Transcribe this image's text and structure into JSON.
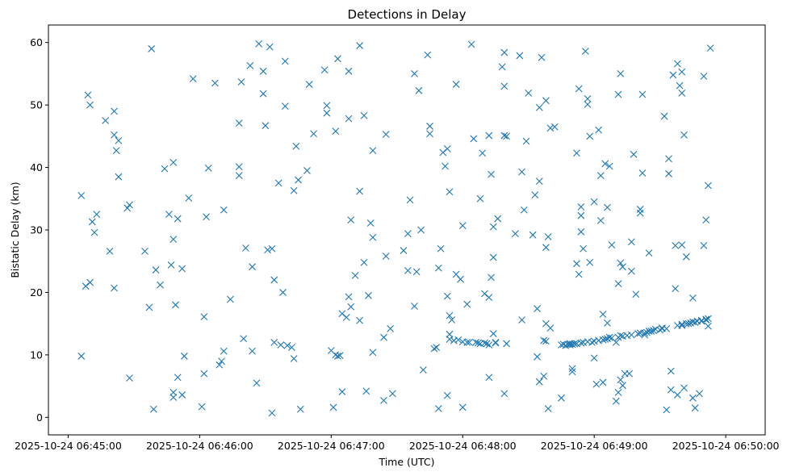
{
  "chart_data": {
    "type": "scatter",
    "title": "Detections in Delay",
    "xlabel": "Time (UTC)",
    "ylabel": "Bistatic Delay (km)",
    "x_unit": "time (HH:MM:SS on 2025-10-24, UTC)",
    "xlim": [
      "06:44:51",
      "06:50:18"
    ],
    "ylim": [
      -2.8,
      62.8
    ],
    "x_ticks": [
      "2025-10-24 06:45:00",
      "2025-10-24 06:46:00",
      "2025-10-24 06:47:00",
      "2025-10-24 06:48:00",
      "2025-10-24 06:49:00",
      "2025-10-24 06:50:00"
    ],
    "y_ticks": [
      0,
      10,
      20,
      30,
      40,
      50,
      60
    ],
    "grid": false,
    "marker": "x",
    "color": "#1f77b4",
    "points": [
      [
        "06:45:06",
        9.8
      ],
      [
        "06:45:06",
        35.5
      ],
      [
        "06:45:08",
        21.0
      ],
      [
        "06:45:09",
        51.6
      ],
      [
        "06:45:10",
        21.6
      ],
      [
        "06:45:10",
        50.0
      ],
      [
        "06:45:11",
        31.3
      ],
      [
        "06:45:12",
        29.6
      ],
      [
        "06:45:13",
        32.5
      ],
      [
        "06:45:17",
        47.5
      ],
      [
        "06:45:19",
        26.6
      ],
      [
        "06:45:21",
        49.0
      ],
      [
        "06:45:21",
        45.2
      ],
      [
        "06:45:21",
        20.7
      ],
      [
        "06:45:22",
        42.7
      ],
      [
        "06:45:23",
        44.3
      ],
      [
        "06:45:23",
        38.5
      ],
      [
        "06:45:27",
        33.5
      ],
      [
        "06:45:28",
        34.0
      ],
      [
        "06:45:28",
        6.3
      ],
      [
        "06:45:35",
        26.6
      ],
      [
        "06:45:37",
        17.6
      ],
      [
        "06:45:38",
        59.0
      ],
      [
        "06:45:39",
        1.3
      ],
      [
        "06:45:40",
        23.6
      ],
      [
        "06:45:42",
        21.2
      ],
      [
        "06:45:44",
        39.8
      ],
      [
        "06:45:46",
        32.5
      ],
      [
        "06:45:47",
        24.4
      ],
      [
        "06:45:48",
        40.8
      ],
      [
        "06:45:48",
        28.5
      ],
      [
        "06:45:48",
        4.0
      ],
      [
        "06:45:48",
        3.2
      ],
      [
        "06:45:49",
        18.0
      ],
      [
        "06:45:50",
        31.8
      ],
      [
        "06:45:50",
        6.4
      ],
      [
        "06:45:52",
        23.8
      ],
      [
        "06:45:52",
        3.6
      ],
      [
        "06:45:53",
        9.8
      ],
      [
        "06:45:55",
        35.1
      ],
      [
        "06:45:57",
        54.2
      ],
      [
        "06:46:01",
        1.7
      ],
      [
        "06:46:02",
        16.1
      ],
      [
        "06:46:02",
        7.0
      ],
      [
        "06:46:03",
        32.1
      ],
      [
        "06:46:04",
        39.9
      ],
      [
        "06:46:07",
        53.5
      ],
      [
        "06:46:09",
        8.4
      ],
      [
        "06:46:10",
        9.0
      ],
      [
        "06:46:11",
        33.2
      ],
      [
        "06:46:11",
        10.6
      ],
      [
        "06:46:14",
        18.9
      ],
      [
        "06:46:18",
        40.1
      ],
      [
        "06:46:18",
        38.7
      ],
      [
        "06:46:18",
        47.1
      ],
      [
        "06:46:19",
        53.7
      ],
      [
        "06:46:20",
        12.6
      ],
      [
        "06:46:21",
        27.1
      ],
      [
        "06:46:23",
        56.3
      ],
      [
        "06:46:24",
        10.6
      ],
      [
        "06:46:24",
        24.1
      ],
      [
        "06:46:26",
        5.5
      ],
      [
        "06:46:27",
        59.8
      ],
      [
        "06:46:29",
        55.4
      ],
      [
        "06:46:29",
        51.8
      ],
      [
        "06:46:30",
        46.7
      ],
      [
        "06:46:31",
        26.8
      ],
      [
        "06:46:32",
        59.3
      ],
      [
        "06:46:33",
        0.7
      ],
      [
        "06:46:33",
        27.0
      ],
      [
        "06:46:34",
        22.0
      ],
      [
        "06:46:34",
        12.0
      ],
      [
        "06:46:36",
        37.5
      ],
      [
        "06:46:37",
        11.6
      ],
      [
        "06:46:38",
        20.0
      ],
      [
        "06:46:39",
        49.8
      ],
      [
        "06:46:39",
        57.0
      ],
      [
        "06:46:40",
        11.5
      ],
      [
        "06:46:42",
        11.2
      ],
      [
        "06:46:43",
        36.3
      ],
      [
        "06:46:43",
        9.4
      ],
      [
        "06:46:44",
        43.4
      ],
      [
        "06:46:45",
        38.0
      ],
      [
        "06:46:46",
        1.3
      ],
      [
        "06:46:49",
        39.5
      ],
      [
        "06:46:50",
        53.3
      ],
      [
        "06:46:52",
        45.4
      ],
      [
        "06:46:57",
        55.6
      ],
      [
        "06:46:58",
        49.9
      ],
      [
        "06:46:58",
        48.7
      ],
      [
        "06:47:00",
        10.7
      ],
      [
        "06:47:01",
        1.6
      ],
      [
        "06:47:02",
        45.8
      ],
      [
        "06:47:02",
        10.0
      ],
      [
        "06:47:03",
        57.4
      ],
      [
        "06:47:03",
        9.8
      ],
      [
        "06:47:04",
        9.9
      ],
      [
        "06:47:05",
        16.6
      ],
      [
        "06:47:05",
        4.1
      ],
      [
        "06:47:07",
        16.0
      ],
      [
        "06:47:08",
        55.4
      ],
      [
        "06:47:08",
        47.8
      ],
      [
        "06:47:08",
        19.3
      ],
      [
        "06:47:09",
        17.7
      ],
      [
        "06:47:09",
        31.6
      ],
      [
        "06:47:11",
        22.7
      ],
      [
        "06:47:13",
        36.2
      ],
      [
        "06:47:13",
        59.5
      ],
      [
        "06:47:13",
        15.5
      ],
      [
        "06:47:15",
        24.8
      ],
      [
        "06:47:15",
        48.3
      ],
      [
        "06:47:16",
        4.2
      ],
      [
        "06:47:17",
        19.5
      ],
      [
        "06:47:18",
        31.1
      ],
      [
        "06:47:19",
        28.8
      ],
      [
        "06:47:19",
        42.7
      ],
      [
        "06:47:19",
        10.4
      ],
      [
        "06:47:24",
        12.8
      ],
      [
        "06:47:24",
        2.7
      ],
      [
        "06:47:25",
        45.3
      ],
      [
        "06:47:25",
        25.8
      ],
      [
        "06:47:27",
        14.2
      ],
      [
        "06:47:28",
        3.8
      ],
      [
        "06:47:33",
        26.7
      ],
      [
        "06:47:35",
        23.5
      ],
      [
        "06:47:35",
        29.4
      ],
      [
        "06:47:36",
        34.8
      ],
      [
        "06:47:38",
        55.0
      ],
      [
        "06:47:38",
        17.8
      ],
      [
        "06:47:39",
        23.3
      ],
      [
        "06:47:40",
        52.3
      ],
      [
        "06:47:41",
        30.0
      ],
      [
        "06:47:42",
        7.6
      ],
      [
        "06:47:44",
        58.0
      ],
      [
        "06:47:45",
        45.4
      ],
      [
        "06:47:45",
        46.6
      ],
      [
        "06:47:47",
        11.0
      ],
      [
        "06:47:48",
        11.2
      ],
      [
        "06:47:49",
        1.4
      ],
      [
        "06:47:49",
        23.9
      ],
      [
        "06:47:50",
        27.0
      ],
      [
        "06:47:51",
        42.4
      ],
      [
        "06:47:52",
        40.2
      ],
      [
        "06:47:53",
        3.5
      ],
      [
        "06:47:53",
        19.4
      ],
      [
        "06:47:53",
        43.0
      ],
      [
        "06:47:54",
        36.1
      ],
      [
        "06:47:54",
        16.3
      ],
      [
        "06:47:54",
        13.3
      ],
      [
        "06:47:54",
        12.5
      ],
      [
        "06:47:55",
        15.6
      ],
      [
        "06:47:56",
        12.3
      ],
      [
        "06:47:57",
        53.3
      ],
      [
        "06:47:57",
        22.9
      ],
      [
        "06:47:58",
        12.4
      ],
      [
        "06:47:59",
        22.1
      ],
      [
        "06:48:00",
        30.7
      ],
      [
        "06:48:00",
        12.1
      ],
      [
        "06:48:00",
        1.6
      ],
      [
        "06:48:02",
        12.0
      ],
      [
        "06:48:02",
        18.1
      ],
      [
        "06:48:03",
        12.0
      ],
      [
        "06:48:04",
        59.7
      ],
      [
        "06:48:05",
        44.6
      ],
      [
        "06:48:06",
        12.0
      ],
      [
        "06:48:07",
        11.9
      ],
      [
        "06:48:08",
        35.0
      ],
      [
        "06:48:08",
        11.8
      ],
      [
        "06:48:09",
        42.3
      ],
      [
        "06:48:10",
        11.9
      ],
      [
        "06:48:10",
        19.8
      ],
      [
        "06:48:11",
        11.8
      ],
      [
        "06:48:12",
        45.1
      ],
      [
        "06:48:12",
        19.2
      ],
      [
        "06:48:12",
        6.4
      ],
      [
        "06:48:12",
        11.6
      ],
      [
        "06:48:13",
        38.9
      ],
      [
        "06:48:13",
        22.4
      ],
      [
        "06:48:14",
        30.5
      ],
      [
        "06:48:14",
        25.6
      ],
      [
        "06:48:14",
        13.4
      ],
      [
        "06:48:15",
        12.0
      ],
      [
        "06:48:15",
        11.9
      ],
      [
        "06:48:16",
        31.8
      ],
      [
        "06:48:18",
        56.1
      ],
      [
        "06:48:19",
        58.4
      ],
      [
        "06:48:19",
        53.0
      ],
      [
        "06:48:19",
        45.1
      ],
      [
        "06:48:19",
        3.8
      ],
      [
        "06:48:20",
        45.0
      ],
      [
        "06:48:20",
        11.8
      ],
      [
        "06:48:24",
        29.4
      ],
      [
        "06:48:26",
        57.9
      ],
      [
        "06:48:27",
        15.6
      ],
      [
        "06:48:27",
        39.3
      ],
      [
        "06:48:28",
        33.2
      ],
      [
        "06:48:29",
        44.2
      ],
      [
        "06:48:30",
        51.9
      ],
      [
        "06:48:32",
        29.2
      ],
      [
        "06:48:33",
        35.6
      ],
      [
        "06:48:34",
        9.7
      ],
      [
        "06:48:34",
        17.4
      ],
      [
        "06:48:35",
        49.6
      ],
      [
        "06:48:35",
        37.8
      ],
      [
        "06:48:35",
        5.7
      ],
      [
        "06:48:36",
        57.6
      ],
      [
        "06:48:37",
        12.3
      ],
      [
        "06:48:37",
        6.6
      ],
      [
        "06:48:38",
        50.7
      ],
      [
        "06:48:38",
        27.2
      ],
      [
        "06:48:38",
        15.0
      ],
      [
        "06:48:38",
        12.2
      ],
      [
        "06:48:39",
        28.9
      ],
      [
        "06:48:39",
        1.4
      ],
      [
        "06:48:40",
        14.3
      ],
      [
        "06:48:40",
        46.3
      ],
      [
        "06:48:42",
        46.5
      ],
      [
        "06:48:45",
        11.6
      ],
      [
        "06:48:45",
        3.1
      ],
      [
        "06:48:46",
        11.7
      ],
      [
        "06:48:47",
        11.5
      ],
      [
        "06:48:48",
        11.7
      ],
      [
        "06:48:49",
        11.6
      ],
      [
        "06:48:49",
        11.8
      ],
      [
        "06:48:50",
        11.7
      ],
      [
        "06:48:50",
        7.8
      ],
      [
        "06:48:50",
        7.3
      ],
      [
        "06:48:51",
        11.8
      ],
      [
        "06:48:52",
        11.8
      ],
      [
        "06:48:52",
        24.6
      ],
      [
        "06:48:52",
        42.3
      ],
      [
        "06:48:53",
        52.6
      ],
      [
        "06:48:53",
        22.9
      ],
      [
        "06:48:54",
        33.7
      ],
      [
        "06:48:54",
        32.3
      ],
      [
        "06:48:54",
        29.7
      ],
      [
        "06:48:54",
        11.9
      ],
      [
        "06:48:55",
        27.0
      ],
      [
        "06:48:55",
        12.0
      ],
      [
        "06:48:56",
        58.6
      ],
      [
        "06:48:57",
        50.1
      ],
      [
        "06:48:57",
        12.1
      ],
      [
        "06:48:57",
        51.0
      ],
      [
        "06:48:58",
        45.0
      ],
      [
        "06:48:58",
        24.8
      ],
      [
        "06:48:59",
        12.0
      ],
      [
        "06:49:00",
        34.5
      ],
      [
        "06:49:00",
        12.2
      ],
      [
        "06:49:00",
        9.5
      ],
      [
        "06:49:01",
        5.3
      ],
      [
        "06:49:02",
        12.3
      ],
      [
        "06:49:02",
        46.0
      ],
      [
        "06:49:03",
        38.7
      ],
      [
        "06:49:03",
        31.5
      ],
      [
        "06:49:04",
        12.4
      ],
      [
        "06:49:04",
        16.5
      ],
      [
        "06:49:04",
        5.6
      ],
      [
        "06:49:05",
        40.6
      ],
      [
        "06:49:05",
        12.5
      ],
      [
        "06:49:06",
        12.6
      ],
      [
        "06:49:06",
        15.1
      ],
      [
        "06:49:06",
        33.6
      ],
      [
        "06:49:07",
        40.2
      ],
      [
        "06:49:07",
        12.8
      ],
      [
        "06:49:08",
        27.6
      ],
      [
        "06:49:08",
        12.7
      ],
      [
        "06:49:10",
        12.0
      ],
      [
        "06:49:10",
        2.6
      ],
      [
        "06:49:11",
        4.0
      ],
      [
        "06:49:11",
        12.8
      ],
      [
        "06:49:11",
        21.4
      ],
      [
        "06:49:11",
        51.7
      ],
      [
        "06:49:12",
        55.0
      ],
      [
        "06:49:12",
        24.7
      ],
      [
        "06:49:12",
        6.0
      ],
      [
        "06:49:12",
        13.1
      ],
      [
        "06:49:13",
        24.1
      ],
      [
        "06:49:13",
        13.0
      ],
      [
        "06:49:13",
        5.1
      ],
      [
        "06:49:14",
        7.0
      ],
      [
        "06:49:15",
        13.1
      ],
      [
        "06:49:16",
        7.0
      ],
      [
        "06:49:17",
        13.2
      ],
      [
        "06:49:17",
        23.4
      ],
      [
        "06:49:17",
        28.1
      ],
      [
        "06:49:18",
        42.1
      ],
      [
        "06:49:19",
        19.7
      ],
      [
        "06:49:20",
        13.4
      ],
      [
        "06:49:21",
        13.5
      ],
      [
        "06:49:21",
        33.3
      ],
      [
        "06:49:21",
        32.7
      ],
      [
        "06:49:22",
        39.1
      ],
      [
        "06:49:22",
        51.7
      ],
      [
        "06:49:23",
        13.5
      ],
      [
        "06:49:23",
        13.2
      ],
      [
        "06:49:24",
        13.6
      ],
      [
        "06:49:25",
        13.8
      ],
      [
        "06:49:25",
        26.3
      ],
      [
        "06:49:26",
        13.8
      ],
      [
        "06:49:27",
        13.9
      ],
      [
        "06:49:28",
        14.1
      ],
      [
        "06:49:30",
        14.0
      ],
      [
        "06:49:31",
        14.2
      ],
      [
        "06:49:31",
        14.3
      ],
      [
        "06:49:32",
        48.2
      ],
      [
        "06:49:33",
        14.2
      ],
      [
        "06:49:33",
        1.2
      ],
      [
        "06:49:34",
        39.0
      ],
      [
        "06:49:34",
        41.4
      ],
      [
        "06:49:35",
        7.4
      ],
      [
        "06:49:35",
        4.4
      ],
      [
        "06:49:36",
        54.8
      ],
      [
        "06:49:37",
        27.5
      ],
      [
        "06:49:37",
        20.6
      ],
      [
        "06:49:38",
        56.6
      ],
      [
        "06:49:38",
        3.6
      ],
      [
        "06:49:38",
        14.7
      ],
      [
        "06:49:39",
        53.1
      ],
      [
        "06:49:40",
        14.7
      ],
      [
        "06:49:40",
        27.6
      ],
      [
        "06:49:40",
        51.9
      ],
      [
        "06:49:40",
        55.3
      ],
      [
        "06:49:40",
        14.9
      ],
      [
        "06:49:41",
        4.7
      ],
      [
        "06:49:41",
        45.2
      ],
      [
        "06:49:42",
        25.7
      ],
      [
        "06:49:42",
        15.0
      ],
      [
        "06:49:43",
        15.0
      ],
      [
        "06:49:44",
        15.1
      ],
      [
        "06:49:45",
        15.3
      ],
      [
        "06:49:45",
        3.1
      ],
      [
        "06:49:45",
        19.1
      ],
      [
        "06:49:46",
        15.2
      ],
      [
        "06:49:46",
        1.5
      ],
      [
        "06:49:47",
        15.4
      ],
      [
        "06:49:48",
        3.8
      ],
      [
        "06:49:49",
        15.5
      ],
      [
        "06:49:49",
        15.4
      ],
      [
        "06:49:50",
        27.5
      ],
      [
        "06:49:50",
        54.6
      ],
      [
        "06:49:51",
        15.7
      ],
      [
        "06:49:51",
        15.6
      ],
      [
        "06:49:51",
        31.6
      ],
      [
        "06:49:52",
        15.8
      ],
      [
        "06:49:52",
        37.1
      ],
      [
        "06:49:52",
        14.6
      ],
      [
        "06:49:53",
        59.1
      ]
    ]
  }
}
